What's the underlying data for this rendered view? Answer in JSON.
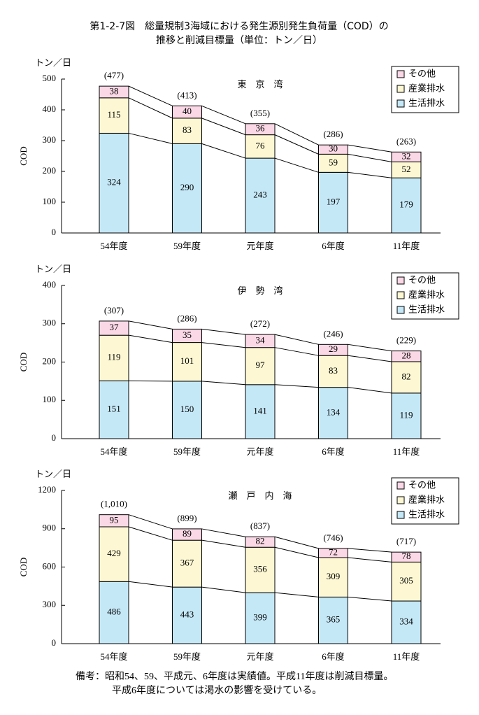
{
  "title": [
    "第1-2-7図　総量規制3海域における発生源別発生負荷量（COD）の",
    "推移と削減目標量（単位：トン／日）"
  ],
  "chart_data": [
    {
      "type": "bar",
      "stacked": true,
      "title": "東　京　湾",
      "y_label": "COD",
      "y_unit": "トン／日",
      "categories": [
        "54年度",
        "59年度",
        "元年度",
        "6年度",
        "11年度"
      ],
      "series": [
        {
          "name": "生活排水",
          "color": "#c5e8f7",
          "values": [
            324,
            290,
            243,
            197,
            179
          ]
        },
        {
          "name": "産業排水",
          "color": "#fdf8d3",
          "values": [
            115,
            83,
            76,
            59,
            52
          ]
        },
        {
          "name": "その他",
          "color": "#fbd8e6",
          "values": [
            38,
            40,
            36,
            30,
            32
          ]
        }
      ],
      "totals": {
        "values": [
          477,
          413,
          355,
          286,
          263
        ],
        "value_labels": [
          "(477)",
          "(413)",
          "(355)",
          "(286)",
          "(263)"
        ]
      },
      "ylim": [
        0,
        500
      ],
      "yticks": [
        0,
        100,
        200,
        300,
        400,
        500
      ],
      "legend": "upper right"
    },
    {
      "type": "bar",
      "stacked": true,
      "title": "伊　勢　湾",
      "y_label": "COD",
      "y_unit": "トン／日",
      "categories": [
        "54年度",
        "59年度",
        "元年度",
        "6年度",
        "11年度"
      ],
      "series": [
        {
          "name": "生活排水",
          "color": "#c5e8f7",
          "values": [
            151,
            150,
            141,
            134,
            119
          ]
        },
        {
          "name": "産業排水",
          "color": "#fdf8d3",
          "values": [
            119,
            101,
            97,
            83,
            82
          ]
        },
        {
          "name": "その他",
          "color": "#fbd8e6",
          "values": [
            37,
            35,
            34,
            29,
            28
          ]
        }
      ],
      "totals": {
        "values": [
          307,
          286,
          272,
          246,
          229
        ],
        "value_labels": [
          "(307)",
          "(286)",
          "(272)",
          "(246)",
          "(229)"
        ]
      },
      "ylim": [
        0,
        400
      ],
      "yticks": [
        0,
        100,
        200,
        300,
        400
      ],
      "legend": "upper right"
    },
    {
      "type": "bar",
      "stacked": true,
      "title": "瀬　戸　内　海",
      "y_label": "COD",
      "y_unit": "トン／日",
      "categories": [
        "54年度",
        "59年度",
        "元年度",
        "6年度",
        "11年度"
      ],
      "series": [
        {
          "name": "生活排水",
          "color": "#c5e8f7",
          "values": [
            486,
            443,
            399,
            365,
            334
          ]
        },
        {
          "name": "産業排水",
          "color": "#fdf8d3",
          "values": [
            429,
            367,
            356,
            309,
            305
          ]
        },
        {
          "name": "その他",
          "color": "#fbd8e6",
          "values": [
            95,
            89,
            82,
            72,
            78
          ]
        }
      ],
      "totals": {
        "values": [
          1010,
          899,
          837,
          746,
          717
        ],
        "value_labels": [
          "(1,010)",
          "(899)",
          "(837)",
          "(746)",
          "(717)"
        ]
      },
      "ylim": [
        0,
        1200
      ],
      "yticks": [
        0,
        300,
        600,
        900,
        1200
      ],
      "legend": "upper right"
    }
  ],
  "note": [
    "備考：昭和54、59、平成元、6年度は実績値。平成11年度は削減目標量。",
    "平成6年度については渇水の影響を受けている。"
  ]
}
